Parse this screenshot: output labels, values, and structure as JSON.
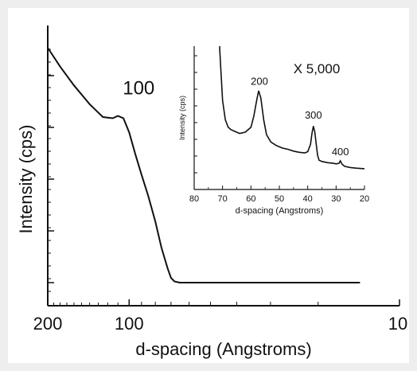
{
  "chart_data": [
    {
      "type": "line",
      "title": "",
      "xlabel": "d-spacing (Angstroms)",
      "ylabel": "Intensity (cps)",
      "x_scale": "log",
      "x_reversed": true,
      "xlim": [
        200,
        10
      ],
      "x_ticks": [
        200,
        100,
        10
      ],
      "x_tick_labels": [
        "200",
        "100",
        "10"
      ],
      "y_ticks_labeled": false,
      "grid": false,
      "annotations": [
        {
          "text": "100",
          "x": 100,
          "y": 0.74
        }
      ],
      "series": [
        {
          "x": [
            200,
            180,
            160,
            140,
            125,
            115,
            110,
            105,
            100,
            95,
            90,
            85,
            80,
            76,
            72,
            70,
            68,
            65,
            60,
            50,
            40,
            30,
            20,
            14
          ],
          "y": [
            1.0,
            0.92,
            0.84,
            0.76,
            0.705,
            0.7,
            0.71,
            0.7,
            0.64,
            0.55,
            0.46,
            0.37,
            0.26,
            0.15,
            0.06,
            0.02,
            0.005,
            0.0,
            0.0,
            0.0,
            0.0,
            0.0,
            0.0,
            0.0
          ]
        }
      ]
    },
    {
      "type": "line",
      "title": "",
      "annotation_text": "X 5,000",
      "xlabel": "d-spacing (Angstroms)",
      "ylabel": "Intensity (cps)",
      "xlim": [
        80,
        20
      ],
      "x_ticks": [
        80,
        70,
        60,
        50,
        40,
        30,
        20
      ],
      "x_tick_labels": [
        "80",
        "70",
        "60",
        "50",
        "40",
        "30",
        "20"
      ],
      "y_ticks_labeled": false,
      "peak_labels": [
        {
          "text": "200",
          "x": 57,
          "y": 0.75
        },
        {
          "text": "300",
          "x": 38,
          "y": 0.47
        },
        {
          "text": "400",
          "x": 28.5,
          "y": 0.17
        }
      ],
      "series": [
        {
          "x": [
            71,
            70,
            69,
            68,
            67,
            66,
            64,
            62,
            60,
            59,
            58,
            57.3,
            56.5,
            55.5,
            54.5,
            53,
            51,
            49,
            47,
            45,
            43,
            41,
            40,
            39,
            38.5,
            38,
            37.5,
            37,
            36.5,
            36,
            35,
            33,
            31,
            30,
            29,
            28.5,
            28,
            27,
            25,
            23,
            20
          ],
          "y": [
            1.0,
            0.58,
            0.42,
            0.36,
            0.34,
            0.33,
            0.31,
            0.32,
            0.36,
            0.45,
            0.58,
            0.66,
            0.6,
            0.42,
            0.3,
            0.24,
            0.21,
            0.19,
            0.18,
            0.165,
            0.155,
            0.15,
            0.16,
            0.22,
            0.31,
            0.37,
            0.32,
            0.22,
            0.13,
            0.09,
            0.08,
            0.07,
            0.065,
            0.06,
            0.065,
            0.085,
            0.06,
            0.04,
            0.03,
            0.025,
            0.02
          ]
        }
      ]
    }
  ]
}
